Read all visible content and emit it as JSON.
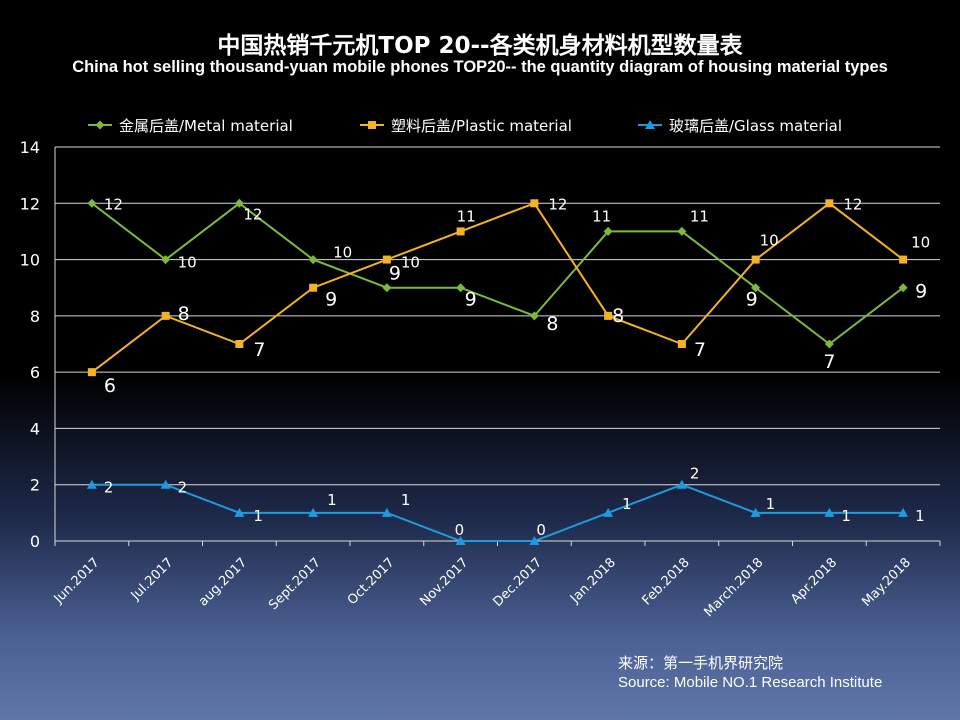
{
  "title_cn": "中国热销千元机TOP 20--各类机身材料机型数量表",
  "title_en": "China hot selling thousand-yuan mobile phones TOP20-- the quantity diagram of housing material types",
  "source_cn": "来源：第一手机界研究院",
  "source_en": "Source: Mobile NO.1 Research Institute",
  "chart_data": {
    "type": "line",
    "categories": [
      "Jun.2017",
      "Jul.2017",
      "aug.2017",
      "Sept.2017",
      "Oct.2017",
      "Nov.2017",
      "Dec.2017",
      "Jan.2018",
      "Feb.2018",
      "March.2018",
      "Apr.2018",
      "May.2018"
    ],
    "ylim": [
      0,
      14
    ],
    "yticks": [
      "0",
      "2",
      "4",
      "6",
      "8",
      "10",
      "12",
      "14"
    ],
    "grid": true,
    "legend_position": "top",
    "series": [
      {
        "name": "金属后盖/Metal material",
        "color": "#7dba3c",
        "marker": "diamond",
        "values": [
          12,
          10,
          12,
          10,
          9,
          9,
          8,
          11,
          11,
          9,
          7,
          9
        ]
      },
      {
        "name": "塑料后盖/Plastic material",
        "color": "#f5b323",
        "marker": "square",
        "values": [
          6,
          8,
          7,
          9,
          10,
          11,
          12,
          8,
          7,
          10,
          12,
          10
        ]
      },
      {
        "name": "玻璃后盖/Glass material",
        "color": "#1e9be0",
        "marker": "triangle",
        "values": [
          2,
          2,
          1,
          1,
          1,
          0,
          0,
          1,
          2,
          1,
          1,
          1
        ]
      }
    ]
  }
}
